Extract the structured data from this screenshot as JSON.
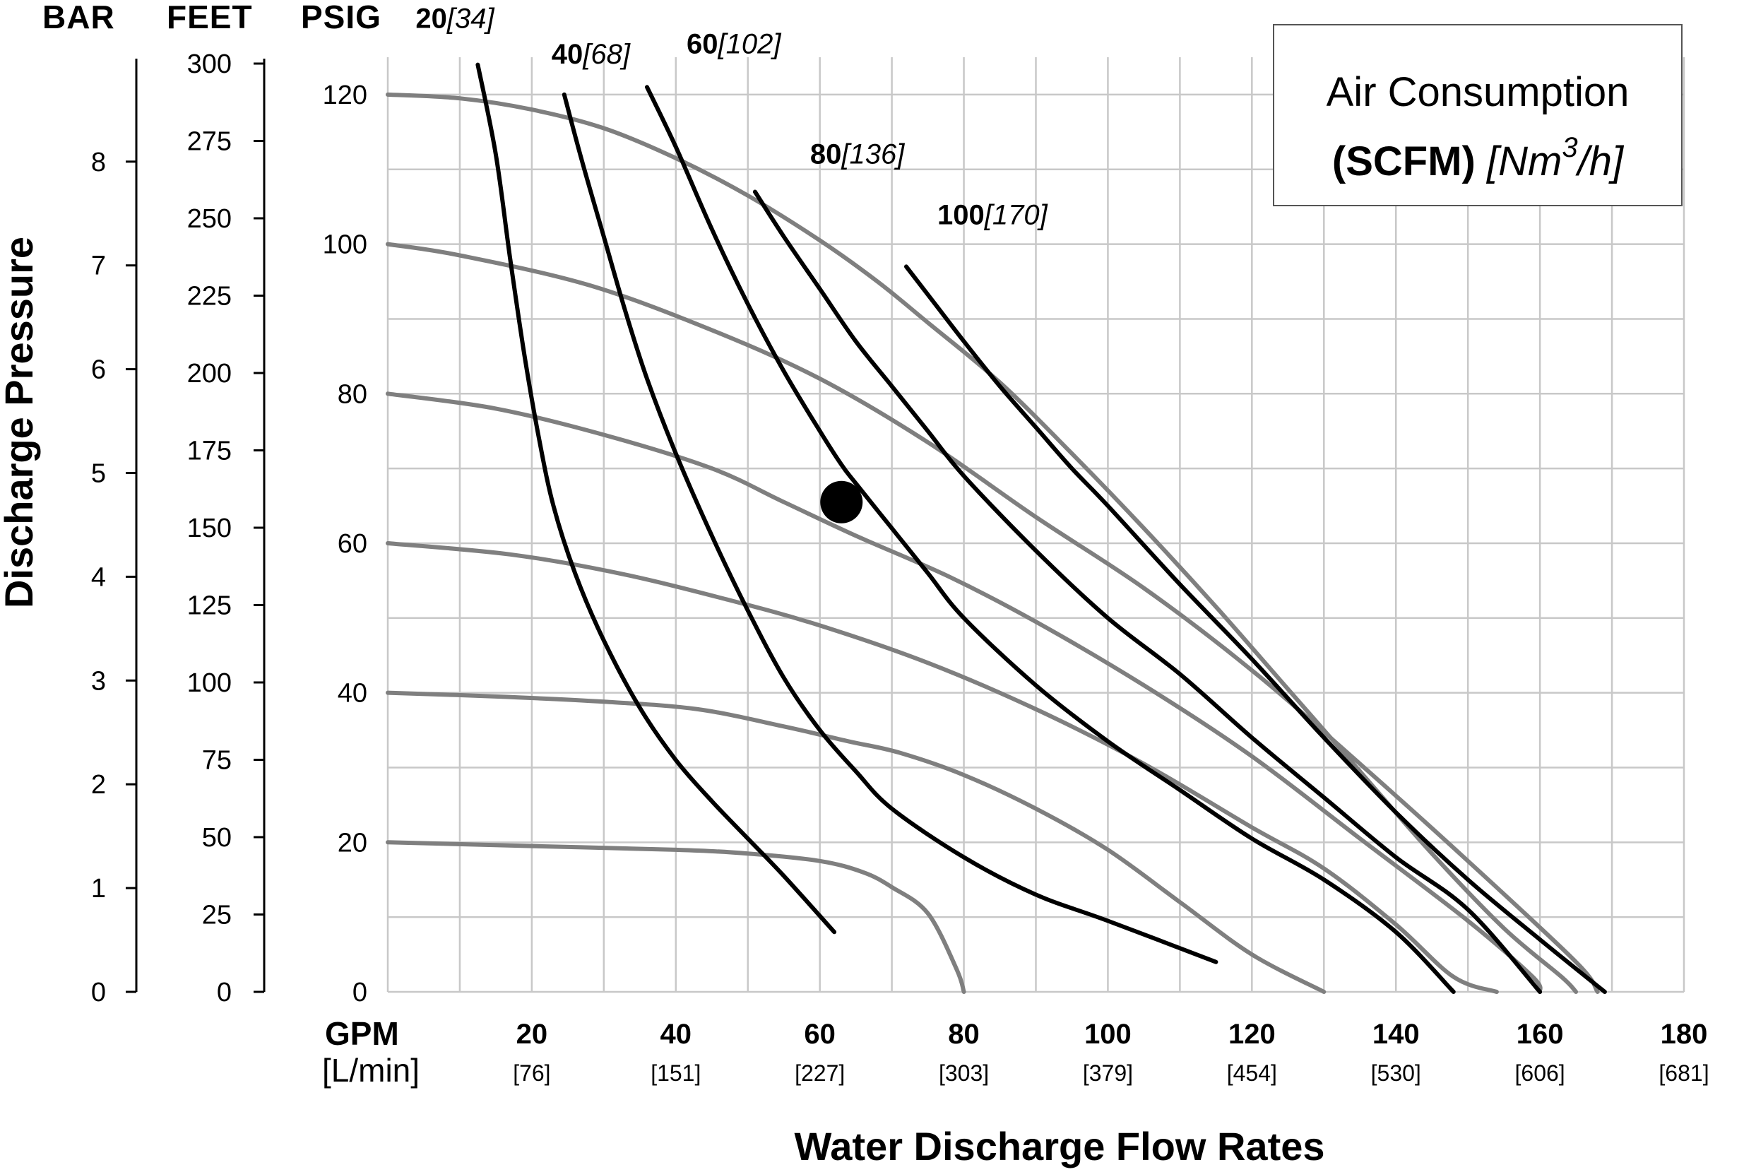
{
  "colors": {
    "grid": "#c8c8c8",
    "performance_curve": "#7f7f7f",
    "air_curve": "#000000",
    "marker": "#000000",
    "background": "#ffffff"
  },
  "chart_data": {
    "type": "line",
    "title": "",
    "xlabel": "Water Discharge Flow Rates",
    "ylabel": "Discharge Pressure",
    "xlim": [
      0,
      180
    ],
    "ylim": [
      0,
      120
    ],
    "grid": true,
    "unit_headers": {
      "bar": "BAR",
      "feet": "FEET",
      "psig": "PSIG"
    },
    "x_axis": {
      "unit_primary": "GPM",
      "unit_secondary": "[L/min]",
      "ticks": [
        {
          "gpm": "20",
          "lpm": "[76]",
          "value": 20
        },
        {
          "gpm": "40",
          "lpm": "[151]",
          "value": 40
        },
        {
          "gpm": "60",
          "lpm": "[227]",
          "value": 60
        },
        {
          "gpm": "80",
          "lpm": "[303]",
          "value": 80
        },
        {
          "gpm": "100",
          "lpm": "[379]",
          "value": 100
        },
        {
          "gpm": "120",
          "lpm": "[454]",
          "value": 120
        },
        {
          "gpm": "140",
          "lpm": "[530]",
          "value": 140
        },
        {
          "gpm": "160",
          "lpm": "[606]",
          "value": 160
        },
        {
          "gpm": "180",
          "lpm": "[681]",
          "value": 180
        }
      ]
    },
    "y_psig_ticks": [
      {
        "label": "0",
        "value": 0
      },
      {
        "label": "20",
        "value": 20
      },
      {
        "label": "40",
        "value": 40
      },
      {
        "label": "60",
        "value": 60
      },
      {
        "label": "80",
        "value": 80
      },
      {
        "label": "100",
        "value": 100
      },
      {
        "label": "120",
        "value": 120
      }
    ],
    "y_feet_ticks": [
      {
        "label": "0",
        "feet": 0
      },
      {
        "label": "25",
        "feet": 25
      },
      {
        "label": "50",
        "feet": 50
      },
      {
        "label": "75",
        "feet": 75
      },
      {
        "label": "100",
        "feet": 100
      },
      {
        "label": "125",
        "feet": 125
      },
      {
        "label": "150",
        "feet": 150
      },
      {
        "label": "175",
        "feet": 175
      },
      {
        "label": "200",
        "feet": 200
      },
      {
        "label": "225",
        "feet": 225
      },
      {
        "label": "250",
        "feet": 250
      },
      {
        "label": "275",
        "feet": 275
      },
      {
        "label": "300",
        "feet": 300
      }
    ],
    "y_bar_ticks": [
      {
        "label": "0",
        "bar": 0
      },
      {
        "label": "1",
        "bar": 1
      },
      {
        "label": "2",
        "bar": 2
      },
      {
        "label": "3",
        "bar": 3
      },
      {
        "label": "4",
        "bar": 4
      },
      {
        "label": "5",
        "bar": 5
      },
      {
        "label": "6",
        "bar": 6
      },
      {
        "label": "7",
        "bar": 7
      },
      {
        "label": "8",
        "bar": 8
      }
    ],
    "legend": {
      "line1": "Air Consumption",
      "line2_bold": "(SCFM)",
      "line2_italic_pre": "[Nm",
      "line2_sup": "3",
      "line2_italic_post": "/h]"
    },
    "performance_curves": [
      {
        "name": "20 psig",
        "points": [
          [
            0,
            20
          ],
          [
            20,
            19.5
          ],
          [
            40,
            19
          ],
          [
            50,
            18.5
          ],
          [
            60,
            17.5
          ],
          [
            66,
            16
          ],
          [
            70,
            14
          ],
          [
            75,
            10.5
          ],
          [
            79,
            3
          ],
          [
            80,
            0
          ]
        ]
      },
      {
        "name": "40 psig",
        "points": [
          [
            0,
            40
          ],
          [
            15,
            39.5
          ],
          [
            30,
            38.8
          ],
          [
            43,
            37.8
          ],
          [
            55,
            35.5
          ],
          [
            64,
            33.5
          ],
          [
            71,
            32
          ],
          [
            80,
            29
          ],
          [
            90,
            24.5
          ],
          [
            100,
            19
          ],
          [
            110,
            12
          ],
          [
            120,
            5
          ],
          [
            130,
            0
          ]
        ]
      },
      {
        "name": "60 psig",
        "points": [
          [
            0,
            60
          ],
          [
            17,
            58.5
          ],
          [
            32,
            56
          ],
          [
            47,
            52.5
          ],
          [
            60,
            49
          ],
          [
            75,
            44
          ],
          [
            90,
            37.8
          ],
          [
            105,
            30.5
          ],
          [
            120,
            22
          ],
          [
            130,
            16.5
          ],
          [
            140,
            9
          ],
          [
            148,
            2
          ],
          [
            154,
            0
          ]
        ]
      },
      {
        "name": "80 psig",
        "points": [
          [
            0,
            80
          ],
          [
            15,
            78
          ],
          [
            30,
            74.5
          ],
          [
            45,
            70
          ],
          [
            55,
            65.5
          ],
          [
            65,
            61
          ],
          [
            78,
            55.5
          ],
          [
            90,
            49.5
          ],
          [
            105,
            41
          ],
          [
            120,
            31.5
          ],
          [
            135,
            20.5
          ],
          [
            150,
            9.5
          ],
          [
            159,
            2
          ],
          [
            160,
            0
          ]
        ]
      },
      {
        "name": "100 psig",
        "points": [
          [
            0,
            100
          ],
          [
            10,
            98.5
          ],
          [
            28,
            94.5
          ],
          [
            45,
            88.5
          ],
          [
            60,
            82
          ],
          [
            75,
            73.5
          ],
          [
            90,
            63.5
          ],
          [
            105,
            54
          ],
          [
            120,
            43
          ],
          [
            135,
            30.5
          ],
          [
            150,
            17.5
          ],
          [
            165,
            4
          ],
          [
            168,
            0
          ]
        ]
      },
      {
        "name": "120 psig",
        "points": [
          [
            0,
            120
          ],
          [
            10,
            119.5
          ],
          [
            20,
            118
          ],
          [
            30,
            115.5
          ],
          [
            40,
            111.5
          ],
          [
            50,
            106.5
          ],
          [
            60,
            100.5
          ],
          [
            68,
            95
          ],
          [
            75,
            89.5
          ],
          [
            85,
            81.5
          ],
          [
            95,
            72
          ],
          [
            105,
            62
          ],
          [
            115,
            51.5
          ],
          [
            125,
            40.5
          ],
          [
            135,
            29.5
          ],
          [
            145,
            18.5
          ],
          [
            155,
            8.5
          ],
          [
            163,
            2
          ],
          [
            165,
            0
          ]
        ]
      }
    ],
    "air_consumption_curves": [
      {
        "bold": "20",
        "italic": "[34]",
        "points": [
          [
            12.5,
            124
          ],
          [
            15,
            112
          ],
          [
            17,
            98
          ],
          [
            19,
            85
          ],
          [
            21,
            74
          ],
          [
            23,
            65
          ],
          [
            26,
            56
          ],
          [
            30,
            47
          ],
          [
            35,
            38
          ],
          [
            40,
            31
          ],
          [
            45,
            25.5
          ],
          [
            50,
            20.5
          ],
          [
            55,
            15.5
          ],
          [
            62,
            8
          ]
        ]
      },
      {
        "bold": "40",
        "italic": "[68]",
        "points": [
          [
            24.5,
            120
          ],
          [
            27,
            111
          ],
          [
            30,
            101
          ],
          [
            33,
            91
          ],
          [
            36,
            82
          ],
          [
            40,
            72
          ],
          [
            45,
            61
          ],
          [
            50,
            51
          ],
          [
            55,
            42
          ],
          [
            60,
            35
          ],
          [
            65,
            29.5
          ],
          [
            70,
            24.5
          ],
          [
            80,
            18
          ],
          [
            90,
            13
          ],
          [
            100,
            9.5
          ],
          [
            115,
            4
          ]
        ]
      },
      {
        "bold": "60",
        "italic": "[102]",
        "points": [
          [
            36,
            121
          ],
          [
            40,
            113
          ],
          [
            45,
            102
          ],
          [
            50,
            92
          ],
          [
            55,
            83
          ],
          [
            60,
            75
          ],
          [
            63,
            70.5
          ],
          [
            65,
            68
          ],
          [
            70,
            62
          ],
          [
            75,
            56
          ],
          [
            80,
            50
          ],
          [
            90,
            41
          ],
          [
            100,
            33.5
          ],
          [
            110,
            27
          ],
          [
            120,
            20.5
          ],
          [
            130,
            15
          ],
          [
            140,
            8
          ],
          [
            148,
            0
          ]
        ]
      },
      {
        "bold": "80",
        "italic": "[136]",
        "points": [
          [
            51,
            107
          ],
          [
            55,
            101
          ],
          [
            60,
            94
          ],
          [
            65,
            87
          ],
          [
            70,
            81
          ],
          [
            75,
            75
          ],
          [
            80,
            69
          ],
          [
            90,
            59
          ],
          [
            100,
            50
          ],
          [
            110,
            42.5
          ],
          [
            120,
            34
          ],
          [
            130,
            26
          ],
          [
            140,
            18
          ],
          [
            150,
            11
          ],
          [
            160,
            0
          ]
        ]
      },
      {
        "bold": "100",
        "italic": "[170]",
        "points": [
          [
            72,
            97
          ],
          [
            76,
            92
          ],
          [
            80,
            87
          ],
          [
            85,
            81
          ],
          [
            90,
            75.5
          ],
          [
            95,
            70
          ],
          [
            100,
            65
          ],
          [
            110,
            54.5
          ],
          [
            120,
            44.5
          ],
          [
            130,
            34
          ],
          [
            140,
            24
          ],
          [
            150,
            15
          ],
          [
            160,
            7
          ],
          [
            169,
            0
          ]
        ]
      }
    ],
    "operating_point": {
      "gpm": 63,
      "psig": 65.5
    }
  }
}
